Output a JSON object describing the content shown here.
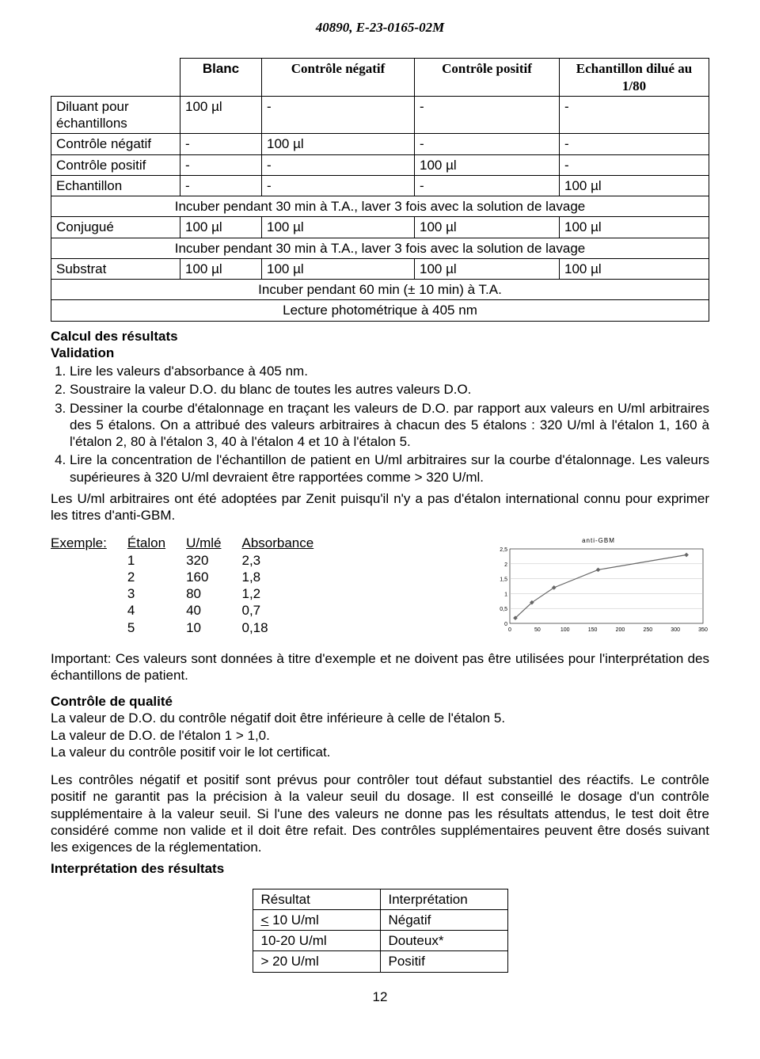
{
  "doc_header": "40890, E-23-0165-02M",
  "main_table": {
    "headers": [
      "",
      "Blanc",
      "Contrôle négatif",
      "Contrôle positif",
      "Echantillon dilué au 1/80"
    ],
    "rows": [
      {
        "cells": [
          "Diluant pour échantillons",
          "100 µl",
          "-",
          "-",
          "-"
        ]
      },
      {
        "cells": [
          "Contrôle négatif",
          "-",
          "100 µl",
          "-",
          "-"
        ]
      },
      {
        "cells": [
          "Contrôle positif",
          "-",
          "-",
          "100 µl",
          "-"
        ]
      },
      {
        "cells": [
          "Echantillon",
          "-",
          "-",
          "-",
          "100 µl"
        ]
      },
      {
        "span": true,
        "text": "Incuber pendant 30 min à T.A., laver 3 fois avec la solution de lavage"
      },
      {
        "cells": [
          "Conjugué",
          "100 µl",
          "100 µl",
          "100 µl",
          "100 µl"
        ]
      },
      {
        "span": true,
        "text": "Incuber pendant 30 min à T.A., laver 3 fois avec la solution de lavage"
      },
      {
        "cells": [
          "Substrat",
          "100 µl",
          "100 µl",
          "100 µl",
          "100 µl"
        ]
      },
      {
        "span": true,
        "text": "Incuber pendant 60 min (± 10 min) à T.A."
      },
      {
        "span": true,
        "text": "Lecture photométrique à 405 nm"
      }
    ]
  },
  "calc_heading": "Calcul des résultats",
  "validation_heading": "Validation",
  "validation_list": [
    "Lire les valeurs d'absorbance à 405 nm.",
    "Soustraire la valeur D.O. du blanc de toutes les autres valeurs D.O.",
    "Dessiner la courbe d'étalonnage en traçant les valeurs de D.O. par rapport aux valeurs en U/ml arbitraires des 5 étalons. On a attribué des valeurs arbitraires à chacun des 5 étalons : 320 U/ml à l'étalon 1, 160 à l'étalon 2, 80 à l'étalon 3, 40 à l'étalon 4 et 10 à l'étalon 5.",
    "Lire la concentration de l'échantillon de patient en U/ml arbitraires sur la courbe d'étalonnage. Les valeurs supérieures à 320 U/ml devraient être rapportées comme > 320 U/ml."
  ],
  "adopt_paragraph": "Les U/ml arbitraires ont été adoptées par Zenit puisqu'il n'y a pas d'étalon international connu pour exprimer les titres d'anti-GBM.",
  "example": {
    "label": "Exemple:",
    "headers": [
      "Étalon",
      "U/mlé",
      "Absorbance"
    ],
    "rows": [
      [
        "1",
        "320",
        "2,3"
      ],
      [
        "2",
        "160",
        "1,8"
      ],
      [
        "3",
        "80",
        "1,2"
      ],
      [
        "4",
        "40",
        "0,7"
      ],
      [
        "5",
        "10",
        "0,18"
      ]
    ]
  },
  "chart": {
    "title": "anti-GBM",
    "x_values": [
      10,
      40,
      80,
      160,
      320
    ],
    "y_values": [
      0.18,
      0.7,
      1.2,
      1.8,
      2.3
    ],
    "xlim": [
      0,
      350
    ],
    "ylim": [
      0,
      2.5
    ],
    "xtick_labels": [
      "0",
      "50",
      "100",
      "150",
      "200",
      "250",
      "300",
      "350"
    ],
    "ytick_labels": [
      "0",
      "0,5",
      "1",
      "1,5",
      "2",
      "2,5"
    ],
    "line_color": "#666666",
    "marker_color": "#666666",
    "grid_color": "#bfbfbf",
    "background_color": "#ffffff",
    "border_color": "#000000",
    "title_fontsize": 8,
    "tick_fontsize": 7
  },
  "important_paragraph": "Important: Ces valeurs sont données à titre d'exemple et ne doivent pas être utilisées pour l'interprétation des échantillons de patient.",
  "qc_heading": "Contrôle de qualité",
  "qc_lines": [
    "La valeur de D.O. du contrôle négatif doit être inférieure à celle de l'étalon 5.",
    "La valeur de D.O. de l'étalon 1 > 1,0.",
    "La valeur du contrôle positif voir le lot certificat."
  ],
  "qc_paragraph": "Les contrôles négatif et positif sont prévus pour contrôler tout défaut substantiel des réactifs. Le contrôle positif ne garantit pas la précision à la valeur seuil du dosage. Il est conseillé le dosage d'un contrôle supplémentaire à la valeur seuil. Si l'une des valeurs ne donne pas les résultats attendus, le test doit être considéré comme non valide et il doit être refait. Des contrôles supplémentaires peuvent être dosés suivant les exigences de la réglementation.",
  "interp_heading": "Interprétation des résultats",
  "result_table": {
    "header": [
      "Résultat",
      "Interprétation"
    ],
    "rows": [
      [
        "< 10 U/ml",
        "Négatif"
      ],
      [
        "10-20 U/ml",
        "Douteux*"
      ],
      [
        "> 20 U/ml",
        "Positif"
      ]
    ]
  },
  "page_number": "12"
}
